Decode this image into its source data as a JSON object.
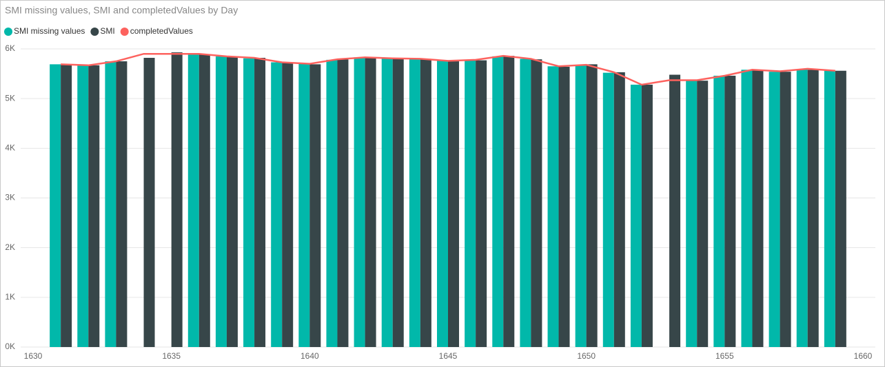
{
  "chart_data": {
    "type": "bar-line",
    "title": "SMI missing values, SMI and completedValues by Day",
    "x": [
      1631,
      1632,
      1633,
      1634,
      1635,
      1636,
      1637,
      1638,
      1639,
      1640,
      1641,
      1642,
      1643,
      1644,
      1645,
      1646,
      1647,
      1648,
      1649,
      1650,
      1651,
      1652,
      1653,
      1654,
      1655,
      1656,
      1657,
      1658,
      1659
    ],
    "series": [
      {
        "name": "SMI missing values",
        "color": "#01b8aa",
        "kind": "bar",
        "values": [
          5690,
          5670,
          5750,
          null,
          null,
          5900,
          5850,
          5810,
          5730,
          5700,
          5780,
          5830,
          5810,
          5800,
          5760,
          5780,
          5850,
          5800,
          5650,
          5670,
          5520,
          5280,
          null,
          5370,
          5460,
          5580,
          5540,
          5590,
          5560
        ]
      },
      {
        "name": "SMI",
        "color": "#374649",
        "kind": "bar",
        "values": [
          5680,
          5670,
          5750,
          5820,
          5930,
          5890,
          5840,
          5820,
          5720,
          5690,
          5790,
          5820,
          5810,
          5800,
          5750,
          5770,
          5860,
          5790,
          5640,
          5690,
          5530,
          5280,
          5480,
          5360,
          5460,
          5570,
          5540,
          5580,
          5560
        ]
      },
      {
        "name": "completedValues",
        "color": "#fd625e",
        "kind": "line",
        "values": [
          5690,
          5670,
          5750,
          5900,
          5900,
          5900,
          5850,
          5820,
          5730,
          5700,
          5790,
          5830,
          5810,
          5800,
          5760,
          5780,
          5860,
          5800,
          5650,
          5680,
          5530,
          5280,
          5370,
          5370,
          5460,
          5580,
          5550,
          5600,
          5560
        ]
      }
    ],
    "xlim": [
      1630,
      1660
    ],
    "xticks": [
      1630,
      1635,
      1640,
      1645,
      1650,
      1655,
      1660
    ],
    "ylim": [
      0,
      6000
    ],
    "yticks": [
      {
        "value": 0,
        "label": "0K"
      },
      {
        "value": 1000,
        "label": "1K"
      },
      {
        "value": 2000,
        "label": "2K"
      },
      {
        "value": 3000,
        "label": "3K"
      },
      {
        "value": 4000,
        "label": "4K"
      },
      {
        "value": 5000,
        "label": "5K"
      },
      {
        "value": 6000,
        "label": "6K"
      }
    ],
    "grid": true
  }
}
